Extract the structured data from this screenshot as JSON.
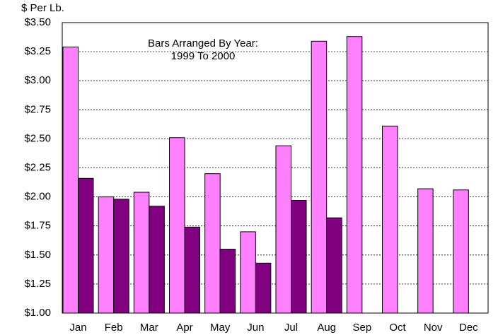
{
  "chart_data": {
    "type": "bar",
    "y_label": "$ Per Lb.",
    "annotation": [
      "Bars Arranged By Year:",
      "1999 To 2000"
    ],
    "categories": [
      "Jan",
      "Feb",
      "Mar",
      "Apr",
      "May",
      "Jun",
      "Jul",
      "Aug",
      "Sep",
      "Oct",
      "Nov",
      "Dec"
    ],
    "series": [
      {
        "color": "#ff80ff",
        "values": [
          3.29,
          2.0,
          2.04,
          2.51,
          2.2,
          1.7,
          2.44,
          3.34,
          3.38,
          2.61,
          2.07,
          2.06
        ]
      },
      {
        "color": "#800080",
        "values": [
          2.16,
          1.98,
          1.92,
          1.74,
          1.55,
          1.43,
          1.97,
          1.82,
          null,
          null,
          null,
          null
        ]
      }
    ],
    "ylim": [
      1.0,
      3.5
    ],
    "yticks": [
      {
        "value": 1.0,
        "label": "$1.00"
      },
      {
        "value": 1.25,
        "label": "$1.25"
      },
      {
        "value": 1.5,
        "label": "$1.50"
      },
      {
        "value": 1.75,
        "label": "$1.75"
      },
      {
        "value": 2.0,
        "label": "$2.00"
      },
      {
        "value": 2.25,
        "label": "$2.25"
      },
      {
        "value": 2.5,
        "label": "$2.50"
      },
      {
        "value": 2.75,
        "label": "$2.75"
      },
      {
        "value": 3.0,
        "label": "$3.00"
      },
      {
        "value": 3.25,
        "label": "$3.25"
      },
      {
        "value": 3.5,
        "label": "$3.50"
      }
    ],
    "grid": true
  }
}
